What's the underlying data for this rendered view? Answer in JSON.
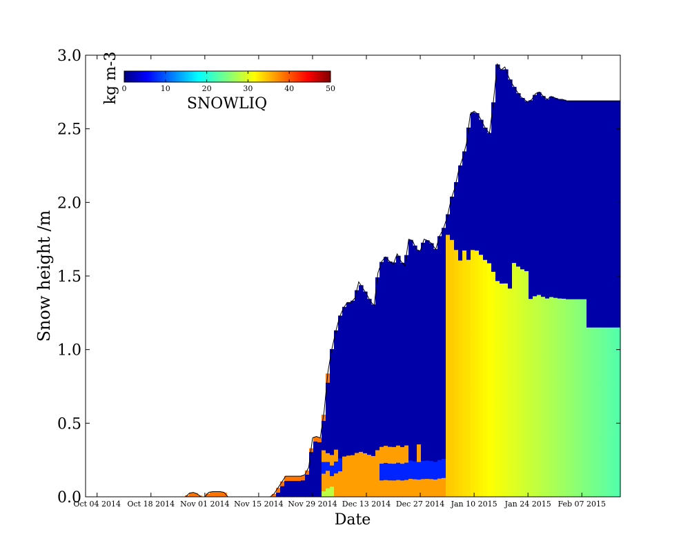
{
  "chart_data": {
    "type": "heatmap",
    "title": "",
    "xlabel": "Date",
    "ylabel": "Snow height /m",
    "x_ticks": [
      "Oct 04 2014",
      "Oct 18 2014",
      "Nov 01 2014",
      "Nov 15 2014",
      "Nov 29 2014",
      "Dec 13 2014",
      "Dec 27 2014",
      "Jan 10 2015",
      "Jan 24 2015",
      "Feb 07 2015"
    ],
    "xlim": [
      "2014-10-01",
      "2015-02-17"
    ],
    "ylim": [
      0.0,
      3.0
    ],
    "y_ticks": [
      "0.0",
      "0.5",
      "1.0",
      "1.5",
      "2.0",
      "2.5",
      "3.0"
    ],
    "colorbar": {
      "label": "SNOWLIQ",
      "units": "kg m-3",
      "range": [
        0,
        50
      ],
      "ticks": [
        "0",
        "10",
        "20",
        "30",
        "40",
        "50"
      ],
      "colormap": "jet",
      "placement": "top-left"
    },
    "snow_height_profile": {
      "dates": [
        "2014-10-01",
        "2014-10-27",
        "2014-10-28",
        "2014-10-29",
        "2014-10-30",
        "2014-10-31",
        "2014-11-01",
        "2014-11-02",
        "2014-11-03",
        "2014-11-04",
        "2014-11-05",
        "2014-11-06",
        "2014-11-07",
        "2014-11-08",
        "2014-11-09",
        "2014-11-10",
        "2014-11-11",
        "2014-11-12",
        "2014-11-13",
        "2014-11-14",
        "2014-11-15",
        "2014-11-16",
        "2014-11-17",
        "2014-11-18",
        "2014-11-19",
        "2014-11-20",
        "2014-11-21",
        "2014-11-22",
        "2014-11-23",
        "2014-11-24",
        "2014-11-25",
        "2014-11-26",
        "2014-11-27",
        "2014-11-28",
        "2014-11-29",
        "2014-11-30",
        "2014-12-01",
        "2014-12-02",
        "2014-12-03",
        "2014-12-04",
        "2014-12-05",
        "2014-12-06",
        "2014-12-07",
        "2014-12-08",
        "2014-12-09",
        "2014-12-10",
        "2014-12-11",
        "2014-12-12",
        "2014-12-13",
        "2014-12-14",
        "2014-12-15",
        "2014-12-16",
        "2014-12-17",
        "2014-12-18",
        "2014-12-19",
        "2014-12-20",
        "2014-12-21",
        "2014-12-22",
        "2014-12-23",
        "2014-12-24",
        "2014-12-25",
        "2014-12-26",
        "2014-12-27",
        "2014-12-28",
        "2014-12-29",
        "2014-12-30",
        "2014-12-31",
        "2015-01-01",
        "2015-01-02",
        "2015-01-03",
        "2015-01-04",
        "2015-01-05",
        "2015-01-06",
        "2015-01-07",
        "2015-01-08",
        "2015-01-09",
        "2015-01-10",
        "2015-01-11",
        "2015-01-12",
        "2015-01-13",
        "2015-01-14",
        "2015-01-15",
        "2015-01-16",
        "2015-01-17",
        "2015-01-18",
        "2015-01-19",
        "2015-01-20",
        "2015-01-21",
        "2015-01-22",
        "2015-01-23",
        "2015-01-24",
        "2015-01-25",
        "2015-01-26",
        "2015-01-27",
        "2015-01-28",
        "2015-01-29",
        "2015-01-30",
        "2015-01-31",
        "2015-02-01",
        "2015-02-02",
        "2015-02-03",
        "2015-02-04",
        "2015-02-05",
        "2015-02-06",
        "2015-02-07",
        "2015-02-08",
        "2015-02-09",
        "2015-02-10",
        "2015-02-11",
        "2015-02-12",
        "2015-02-13",
        "2015-02-14",
        "2015-02-15",
        "2015-02-16",
        "2015-02-17"
      ],
      "height_m": [
        0.0,
        0.0,
        0.025,
        0.03,
        0.02,
        0.0,
        0.0,
        0.03,
        0.035,
        0.035,
        0.035,
        0.03,
        0.0,
        0.0,
        0.0,
        0.0,
        0.0,
        0.0,
        0.0,
        0.0,
        0.0,
        0.0,
        0.0,
        0.0,
        0.02,
        0.06,
        0.1,
        0.14,
        0.14,
        0.14,
        0.14,
        0.14,
        0.15,
        0.2,
        0.4,
        0.41,
        0.4,
        0.58,
        0.85,
        1.0,
        1.12,
        1.22,
        1.28,
        1.32,
        1.32,
        1.35,
        1.46,
        1.42,
        1.38,
        1.33,
        1.3,
        1.52,
        1.6,
        1.63,
        1.6,
        1.58,
        1.65,
        1.6,
        1.57,
        1.75,
        1.74,
        1.68,
        1.67,
        1.75,
        1.74,
        1.72,
        1.68,
        1.77,
        1.82,
        1.9,
        2.02,
        2.1,
        2.22,
        2.3,
        2.4,
        2.6,
        2.62,
        2.6,
        2.55,
        2.5,
        2.47,
        2.68,
        2.94,
        2.9,
        2.92,
        2.85,
        2.8,
        2.76,
        2.72,
        2.7,
        2.68,
        2.7,
        2.74,
        2.75,
        2.72,
        2.7,
        2.72,
        2.71,
        2.7,
        2.7,
        2.69,
        2.69,
        2.69,
        2.69,
        2.69,
        2.69,
        2.69,
        2.69,
        2.69,
        2.69,
        2.69,
        2.69,
        2.69,
        2.69,
        2.69
      ]
    }
  }
}
